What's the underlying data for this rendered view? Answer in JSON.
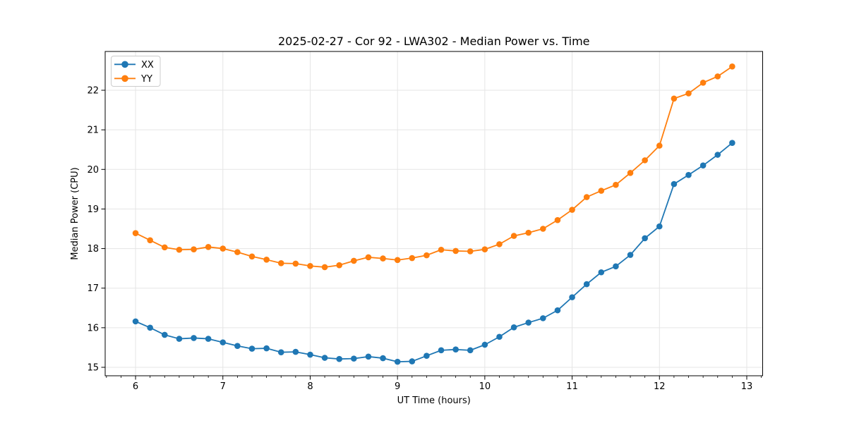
{
  "chart_data": {
    "type": "line",
    "title": "2025-02-27 - Cor 92 - LWA302 - Median Power vs. Time",
    "xlabel": "UT Time (hours)",
    "ylabel": "Median Power (CPU)",
    "xlim": [
      5.652,
      13.182
    ],
    "ylim": [
      14.786,
      22.98
    ],
    "xticks": [
      6,
      7,
      8,
      9,
      10,
      11,
      12,
      13
    ],
    "yticks": [
      15,
      16,
      17,
      18,
      19,
      20,
      21,
      22
    ],
    "x_minor_tick_step": 0.1666667,
    "grid": "major",
    "legend_position": "upper left",
    "x": [
      6.0,
      6.1667,
      6.3333,
      6.5,
      6.6667,
      6.8333,
      7.0,
      7.1667,
      7.3333,
      7.5,
      7.6667,
      7.8333,
      8.0,
      8.1667,
      8.3333,
      8.5,
      8.6667,
      8.8333,
      9.0,
      9.1667,
      9.3333,
      9.5,
      9.6667,
      9.8333,
      10.0,
      10.1667,
      10.3333,
      10.5,
      10.6667,
      10.8333,
      11.0,
      11.1667,
      11.3333,
      11.5,
      11.6667,
      11.8333,
      12.0,
      12.1667,
      12.3333,
      12.5,
      12.6667,
      12.8333
    ],
    "series": [
      {
        "name": "XX",
        "color": "#1f77b4",
        "values": [
          16.16,
          16.0,
          15.82,
          15.72,
          15.74,
          15.72,
          15.63,
          15.54,
          15.47,
          15.48,
          15.38,
          15.39,
          15.32,
          15.24,
          15.21,
          15.22,
          15.27,
          15.23,
          15.14,
          15.15,
          15.29,
          15.43,
          15.45,
          15.43,
          15.57,
          15.77,
          16.01,
          16.13,
          16.24,
          16.44,
          16.77,
          17.1,
          17.4,
          17.55,
          17.84,
          18.26,
          18.56,
          19.63,
          19.86,
          20.1,
          20.37,
          20.67
        ]
      },
      {
        "name": "YY",
        "color": "#ff7f0e",
        "values": [
          18.39,
          18.21,
          18.03,
          17.97,
          17.98,
          18.04,
          18.0,
          17.91,
          17.8,
          17.72,
          17.63,
          17.62,
          17.56,
          17.53,
          17.58,
          17.69,
          17.78,
          17.75,
          17.71,
          17.76,
          17.83,
          17.97,
          17.94,
          17.93,
          17.98,
          18.11,
          18.32,
          18.4,
          18.5,
          18.72,
          18.98,
          19.3,
          19.46,
          19.61,
          19.91,
          20.23,
          20.6,
          21.79,
          21.92,
          22.19,
          22.35,
          22.6
        ]
      }
    ],
    "style": {
      "background": "#ffffff",
      "grid_color": "#e5e5e5",
      "spine_color": "#000000",
      "tick_color": "#000000",
      "legend_border_color": "#cccccc",
      "legend_background": "#ffffff"
    }
  }
}
